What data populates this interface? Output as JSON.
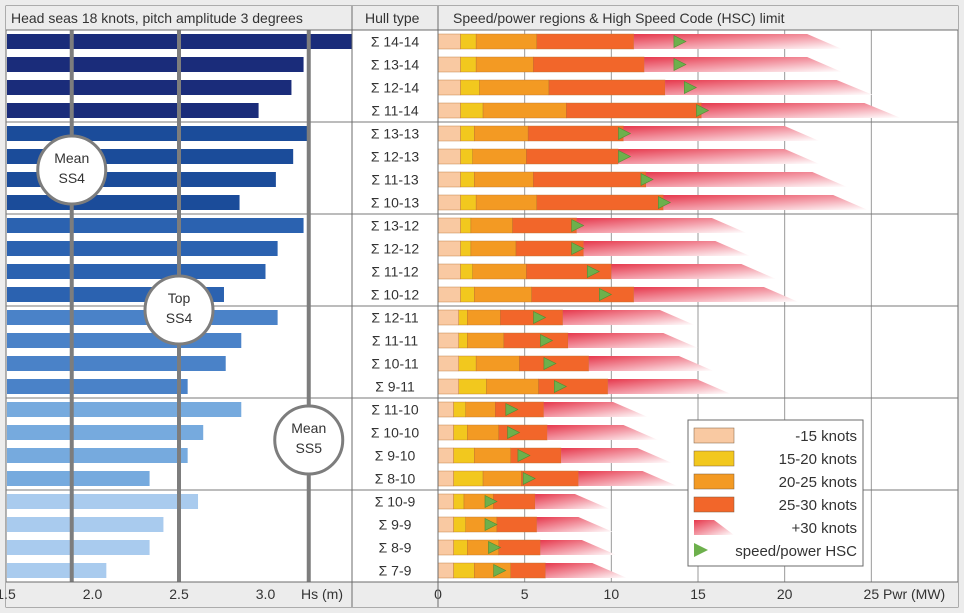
{
  "chart_data": {
    "type": "bar",
    "panel_titles": {
      "left": "Head seas 18 knots, pitch amplitude 3 degrees",
      "middle": "Hull type",
      "right": "Speed/power regions & High Speed Code (HSC) limit"
    },
    "left_axis": {
      "label": "Hs (m)",
      "ticks": [
        "1.5",
        "2.0",
        "2.5",
        "3.0"
      ],
      "range": [
        1.5,
        3.5
      ]
    },
    "right_axis": {
      "label": "Pwr (MW)",
      "ticks": [
        "0",
        "5",
        "10",
        "15",
        "20",
        "25"
      ],
      "range": [
        0,
        30
      ]
    },
    "reference_lines": [
      {
        "label": "Mean\nSS4",
        "value": 1.88
      },
      {
        "label": "Top\nSS4",
        "value": 2.5
      },
      {
        "label": "Mean\nSS5",
        "value": 3.25
      }
    ],
    "groups": [
      {
        "color": "#1a2c7a",
        "hulls": [
          {
            "name": "Σ 14-14",
            "hs": 3.5,
            "p": [
              1.3,
              2.2,
              5.7,
              11.3,
              21.3
            ],
            "tip": 23.3,
            "hsc": 13.9
          },
          {
            "name": "Σ 13-14",
            "hs": 3.22,
            "p": [
              1.3,
              2.2,
              5.5,
              11.9,
              21.3
            ],
            "tip": 23.3,
            "hsc": 13.9
          },
          {
            "name": "Σ 12-14",
            "hs": 3.15,
            "p": [
              1.3,
              2.4,
              6.4,
              13.1,
              23.0
            ],
            "tip": 25.1,
            "hsc": 14.5
          },
          {
            "name": "Σ 11-14",
            "hs": 2.96,
            "p": [
              1.3,
              2.6,
              7.4,
              15.2,
              24.6
            ],
            "tip": 26.7,
            "hsc": 15.2
          }
        ]
      },
      {
        "color": "#1b4c9a",
        "hulls": [
          {
            "name": "Σ 13-13",
            "hs": 3.26,
            "p": [
              1.3,
              2.1,
              5.2,
              10.7,
              20.0
            ],
            "tip": 22.0,
            "hsc": 10.7
          },
          {
            "name": "Σ 12-13",
            "hs": 3.16,
            "p": [
              1.3,
              2.0,
              5.1,
              10.4,
              20.0
            ],
            "tip": 22.0,
            "hsc": 10.7
          },
          {
            "name": "Σ 11-13",
            "hs": 3.06,
            "p": [
              1.3,
              2.1,
              5.5,
              12.0,
              21.6
            ],
            "tip": 23.6,
            "hsc": 12.0
          },
          {
            "name": "Σ 10-13",
            "hs": 2.85,
            "p": [
              1.3,
              2.2,
              5.7,
              13.0,
              22.8
            ],
            "tip": 24.8,
            "hsc": 13.0
          }
        ]
      },
      {
        "color": "#2b62b0",
        "hulls": [
          {
            "name": "Σ 13-12",
            "hs": 3.22,
            "p": [
              1.3,
              1.9,
              4.3,
              8.0,
              15.8
            ],
            "tip": 17.8,
            "hsc": 8.0
          },
          {
            "name": "Σ 12-12",
            "hs": 3.07,
            "p": [
              1.3,
              1.9,
              4.5,
              8.4,
              16.0
            ],
            "tip": 18.0,
            "hsc": 8.0
          },
          {
            "name": "Σ 11-12",
            "hs": 3.0,
            "p": [
              1.3,
              2.0,
              5.1,
              10.0,
              17.5
            ],
            "tip": 19.5,
            "hsc": 8.9
          },
          {
            "name": "Σ 10-12",
            "hs": 2.76,
            "p": [
              1.3,
              2.1,
              5.4,
              11.3,
              18.8
            ],
            "tip": 20.8,
            "hsc": 9.6
          }
        ]
      },
      {
        "color": "#4a82c8",
        "hulls": [
          {
            "name": "Σ 12-11",
            "hs": 3.07,
            "p": [
              1.2,
              1.7,
              3.6,
              7.2,
              12.8
            ],
            "tip": 14.8,
            "hsc": 5.8
          },
          {
            "name": "Σ 11-11",
            "hs": 2.86,
            "p": [
              1.2,
              1.7,
              3.8,
              7.5,
              13.0
            ],
            "tip": 15.0,
            "hsc": 6.2
          },
          {
            "name": "Σ 10-11",
            "hs": 2.77,
            "p": [
              1.2,
              2.2,
              4.7,
              8.7,
              13.9
            ],
            "tip": 15.9,
            "hsc": 6.4
          },
          {
            "name": "Σ 9-11",
            "hs": 2.55,
            "p": [
              1.2,
              2.8,
              5.8,
              9.8,
              14.9
            ],
            "tip": 16.9,
            "hsc": 7.0
          }
        ]
      },
      {
        "color": "#76aade",
        "hulls": [
          {
            "name": "Σ 11-10",
            "hs": 2.86,
            "p": [
              0.9,
              1.6,
              3.3,
              6.1,
              10.1
            ],
            "tip": 12.1,
            "hsc": 4.2
          },
          {
            "name": "Σ 10-10",
            "hs": 2.64,
            "p": [
              0.9,
              1.7,
              3.5,
              6.3,
              10.7
            ],
            "tip": 12.7,
            "hsc": 4.3
          },
          {
            "name": "Σ 9-10",
            "hs": 2.55,
            "p": [
              0.9,
              2.1,
              4.2,
              7.1,
              11.5
            ],
            "tip": 13.5,
            "hsc": 4.9
          },
          {
            "name": "Σ 8-10",
            "hs": 2.33,
            "p": [
              0.9,
              2.6,
              4.8,
              8.1,
              11.8
            ],
            "tip": 13.8,
            "hsc": 5.2
          }
        ]
      },
      {
        "color": "#a9cbee",
        "hulls": [
          {
            "name": "Σ 10-9",
            "hs": 2.61,
            "p": [
              0.9,
              1.5,
              3.2,
              5.6,
              7.9
            ],
            "tip": 9.9,
            "hsc": 3.0
          },
          {
            "name": "Σ 9-9",
            "hs": 2.41,
            "p": [
              0.9,
              1.6,
              3.4,
              5.7,
              8.1
            ],
            "tip": 10.1,
            "hsc": 3.0
          },
          {
            "name": "Σ 8-9",
            "hs": 2.33,
            "p": [
              0.9,
              1.7,
              3.5,
              5.9,
              8.3
            ],
            "tip": 10.3,
            "hsc": 3.2
          },
          {
            "name": "Σ 7-9",
            "hs": 2.08,
            "p": [
              0.9,
              2.1,
              4.2,
              6.2,
              8.9
            ],
            "tip": 10.9,
            "hsc": 3.5
          }
        ]
      }
    ],
    "legend": [
      {
        "label": "-15 knots",
        "color": "#f9c9a2",
        "kind": "box"
      },
      {
        "label": "15-20 knots",
        "color": "#f2c81e",
        "kind": "box"
      },
      {
        "label": "20-25 knots",
        "color": "#f39a23",
        "kind": "box"
      },
      {
        "label": "25-30 knots",
        "color": "#f2662a",
        "kind": "box"
      },
      {
        "label": "+30 knots",
        "color": "#e8485a",
        "kind": "fade"
      },
      {
        "label": "speed/power HSC",
        "color": "#6db04c",
        "kind": "triangle"
      }
    ]
  }
}
